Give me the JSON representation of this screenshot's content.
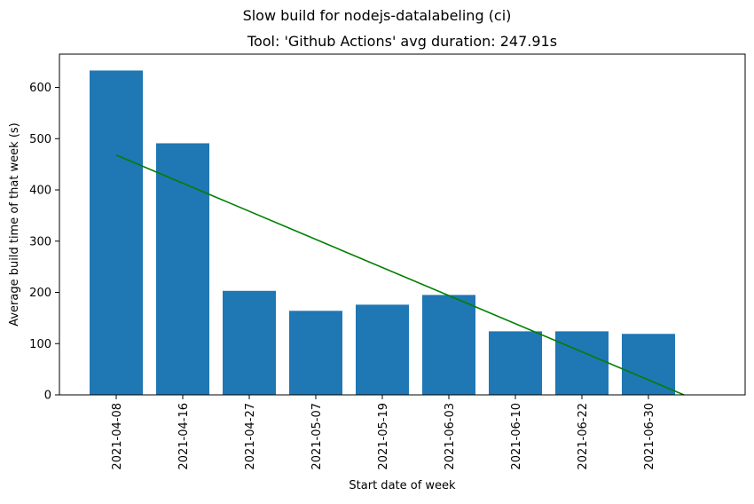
{
  "chart_data": {
    "type": "bar",
    "suptitle": "Slow build for nodejs-datalabeling (ci)",
    "title": "Tool: 'Github Actions' avg duration: 247.91s",
    "xlabel": "Start date of week",
    "ylabel": "Average build time of that week (s)",
    "categories": [
      "2021-04-08",
      "2021-04-16",
      "2021-04-27",
      "2021-05-07",
      "2021-05-19",
      "2021-06-03",
      "2021-06-10",
      "2021-06-22",
      "2021-06-30"
    ],
    "values": [
      633,
      491,
      203,
      164,
      176,
      195,
      124,
      124,
      119
    ],
    "yticks": [
      0,
      100,
      200,
      300,
      400,
      500,
      600
    ],
    "ylim": [
      0,
      665
    ],
    "bar_color": "#1f77b4",
    "trend": {
      "color": "#008000",
      "start": 468,
      "end": 0
    },
    "grid": false,
    "legend": "none"
  }
}
